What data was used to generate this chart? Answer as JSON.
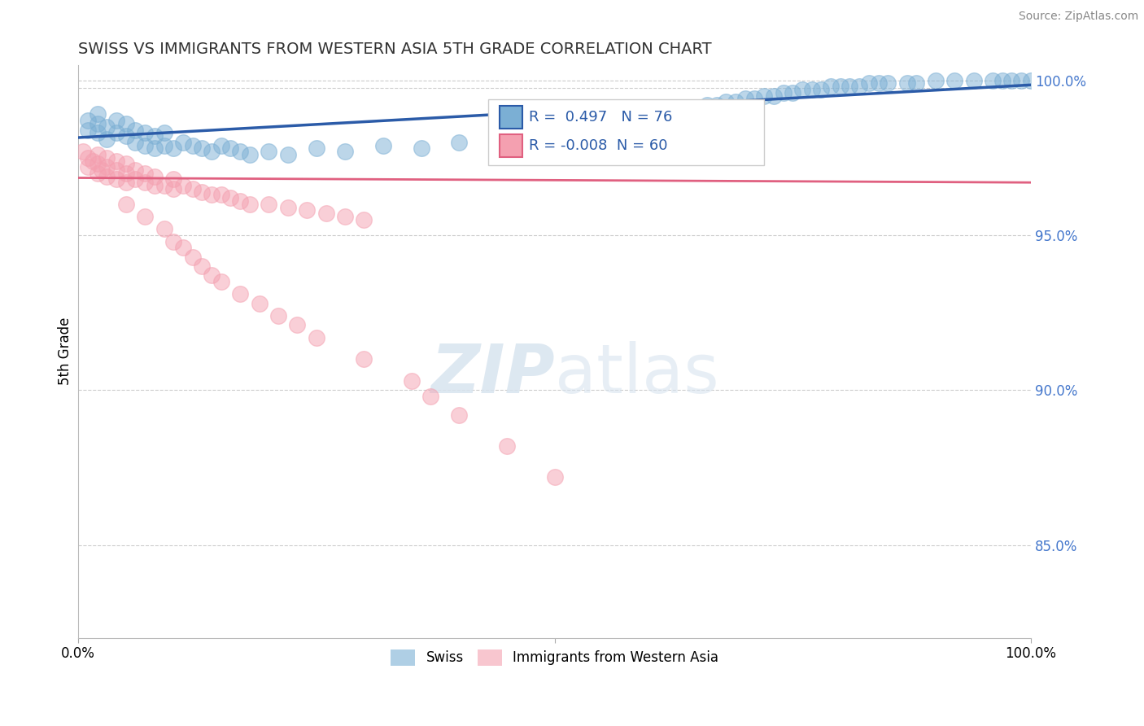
{
  "title": "SWISS VS IMMIGRANTS FROM WESTERN ASIA 5TH GRADE CORRELATION CHART",
  "source": "Source: ZipAtlas.com",
  "ylabel": "5th Grade",
  "blue_R": 0.497,
  "blue_N": 76,
  "pink_R": -0.008,
  "pink_N": 60,
  "blue_color": "#7BAFD4",
  "pink_color": "#F4A0B0",
  "blue_line_color": "#2B5BA8",
  "pink_line_color": "#E06080",
  "background_color": "#FFFFFF",
  "grid_color": "#CCCCCC",
  "blue_scatter_x": [
    0.01,
    0.01,
    0.02,
    0.02,
    0.02,
    0.03,
    0.03,
    0.04,
    0.04,
    0.05,
    0.05,
    0.06,
    0.06,
    0.07,
    0.07,
    0.08,
    0.08,
    0.09,
    0.09,
    0.1,
    0.11,
    0.12,
    0.13,
    0.14,
    0.15,
    0.16,
    0.17,
    0.18,
    0.2,
    0.22,
    0.25,
    0.28,
    0.32,
    0.36,
    0.4,
    0.44,
    0.47,
    0.5,
    0.53,
    0.56,
    0.58,
    0.6,
    0.62,
    0.63,
    0.64,
    0.65,
    0.66,
    0.67,
    0.68,
    0.69,
    0.7,
    0.71,
    0.72,
    0.73,
    0.74,
    0.75,
    0.76,
    0.77,
    0.78,
    0.79,
    0.8,
    0.81,
    0.82,
    0.83,
    0.84,
    0.85,
    0.87,
    0.88,
    0.9,
    0.92,
    0.94,
    0.96,
    0.97,
    0.98,
    0.99,
    1.0
  ],
  "blue_scatter_y": [
    0.984,
    0.987,
    0.983,
    0.986,
    0.989,
    0.981,
    0.985,
    0.983,
    0.987,
    0.982,
    0.986,
    0.98,
    0.984,
    0.979,
    0.983,
    0.978,
    0.982,
    0.979,
    0.983,
    0.978,
    0.98,
    0.979,
    0.978,
    0.977,
    0.979,
    0.978,
    0.977,
    0.976,
    0.977,
    0.976,
    0.978,
    0.977,
    0.979,
    0.978,
    0.98,
    0.979,
    0.981,
    0.983,
    0.984,
    0.986,
    0.987,
    0.988,
    0.989,
    0.99,
    0.991,
    0.991,
    0.992,
    0.992,
    0.993,
    0.993,
    0.994,
    0.994,
    0.995,
    0.995,
    0.996,
    0.996,
    0.997,
    0.997,
    0.997,
    0.998,
    0.998,
    0.998,
    0.998,
    0.999,
    0.999,
    0.999,
    0.999,
    0.999,
    1.0,
    1.0,
    1.0,
    1.0,
    1.0,
    1.0,
    1.0,
    1.0
  ],
  "pink_scatter_x": [
    0.005,
    0.01,
    0.01,
    0.015,
    0.02,
    0.02,
    0.02,
    0.025,
    0.03,
    0.03,
    0.03,
    0.04,
    0.04,
    0.04,
    0.05,
    0.05,
    0.05,
    0.06,
    0.06,
    0.07,
    0.07,
    0.08,
    0.08,
    0.09,
    0.1,
    0.1,
    0.11,
    0.12,
    0.13,
    0.14,
    0.15,
    0.16,
    0.17,
    0.18,
    0.2,
    0.22,
    0.24,
    0.26,
    0.28,
    0.3,
    0.05,
    0.07,
    0.09,
    0.1,
    0.11,
    0.12,
    0.13,
    0.14,
    0.15,
    0.17,
    0.19,
    0.21,
    0.23,
    0.25,
    0.3,
    0.35,
    0.37,
    0.4,
    0.45,
    0.5
  ],
  "pink_scatter_y": [
    0.977,
    0.975,
    0.972,
    0.974,
    0.97,
    0.973,
    0.976,
    0.971,
    0.969,
    0.972,
    0.975,
    0.968,
    0.971,
    0.974,
    0.967,
    0.97,
    0.973,
    0.968,
    0.971,
    0.967,
    0.97,
    0.966,
    0.969,
    0.966,
    0.965,
    0.968,
    0.966,
    0.965,
    0.964,
    0.963,
    0.963,
    0.962,
    0.961,
    0.96,
    0.96,
    0.959,
    0.958,
    0.957,
    0.956,
    0.955,
    0.96,
    0.956,
    0.952,
    0.948,
    0.946,
    0.943,
    0.94,
    0.937,
    0.935,
    0.931,
    0.928,
    0.924,
    0.921,
    0.917,
    0.91,
    0.903,
    0.898,
    0.892,
    0.882,
    0.872
  ],
  "xlim": [
    0.0,
    1.0
  ],
  "ylim": [
    0.82,
    1.005
  ],
  "ytick_vals": [
    0.85,
    0.9,
    0.95,
    1.0
  ],
  "ytick_labels": [
    "85.0%",
    "90.0%",
    "95.0%",
    "100.0%"
  ],
  "ref_line_y": 0.9975,
  "blue_trend_x0": 0.0,
  "blue_trend_y0": 0.9815,
  "blue_trend_x1": 1.0,
  "blue_trend_y1": 0.9985,
  "pink_trend_x0": 0.0,
  "pink_trend_y0": 0.9685,
  "pink_trend_x1": 1.0,
  "pink_trend_y1": 0.967
}
